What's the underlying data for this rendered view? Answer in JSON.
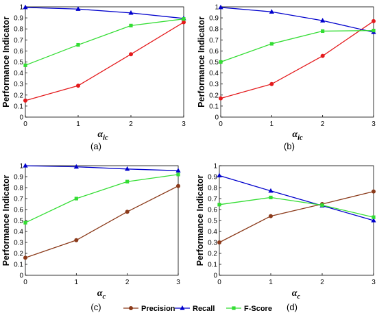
{
  "chart_data": [
    {
      "type": "line",
      "panel": "(a)",
      "x": [
        0,
        1,
        2,
        3
      ],
      "xlabel": {
        "main": "α",
        "sub": "ic"
      },
      "ylabel": "Performance Indicator",
      "ylim": [
        0,
        1
      ],
      "xlim": [
        0,
        3
      ],
      "yticks": [
        "0",
        "0.1",
        "0.2",
        "0.3",
        "0.4",
        "0.5",
        "0.6",
        "0.7",
        "0.8",
        "0.9",
        "1"
      ],
      "xticks": [
        "0",
        "1",
        "2",
        "3"
      ],
      "grid": false,
      "series": [
        {
          "values": [
            0.15,
            0.285,
            0.57,
            0.86
          ],
          "color": "#e41a1c",
          "marker": "circle"
        },
        {
          "values": [
            0.995,
            0.98,
            0.945,
            0.895
          ],
          "color": "#0000cc",
          "marker": "triangle"
        },
        {
          "values": [
            0.47,
            0.655,
            0.83,
            0.89
          ],
          "color": "#33dd33",
          "marker": "square"
        }
      ]
    },
    {
      "type": "line",
      "panel": "(b)",
      "x": [
        0,
        1,
        2,
        3
      ],
      "xlabel": {
        "main": "α",
        "sub": "ic"
      },
      "ylabel": "Performance Indicator",
      "ylim": [
        0,
        1
      ],
      "xlim": [
        0,
        3
      ],
      "yticks": [
        "0",
        "0.1",
        "0.2",
        "0.3",
        "0.4",
        "0.5",
        "0.6",
        "0.7",
        "0.8",
        "0.9",
        "1"
      ],
      "xticks": [
        "0",
        "1",
        "2",
        "3"
      ],
      "grid": false,
      "series": [
        {
          "values": [
            0.17,
            0.3,
            0.555,
            0.87
          ],
          "color": "#e41a1c",
          "marker": "circle"
        },
        {
          "values": [
            0.995,
            0.955,
            0.875,
            0.77
          ],
          "color": "#0000cc",
          "marker": "triangle"
        },
        {
          "values": [
            0.5,
            0.665,
            0.78,
            0.785
          ],
          "color": "#33dd33",
          "marker": "square"
        }
      ]
    },
    {
      "type": "line",
      "panel": "(c)",
      "x": [
        0,
        1,
        2,
        3
      ],
      "xlabel": {
        "main": "α",
        "sub": "c"
      },
      "ylabel": "Performance Indicator",
      "ylim": [
        0,
        1
      ],
      "xlim": [
        0,
        3
      ],
      "yticks": [
        "0",
        "0.1",
        "0.2",
        "0.3",
        "0.4",
        "0.5",
        "0.6",
        "0.7",
        "0.8",
        "0.9",
        "1"
      ],
      "xticks": [
        "0",
        "1",
        "2",
        "3"
      ],
      "grid": false,
      "series": [
        {
          "name": "Precision",
          "values": [
            0.16,
            0.32,
            0.58,
            0.815
          ],
          "color": "#8b3a1a",
          "marker": "circle"
        },
        {
          "name": "Recall",
          "values": [
            1.0,
            0.99,
            0.97,
            0.955
          ],
          "color": "#0000cc",
          "marker": "triangle"
        },
        {
          "name": "F-Score",
          "values": [
            0.48,
            0.7,
            0.855,
            0.92
          ],
          "color": "#33dd33",
          "marker": "square"
        }
      ]
    },
    {
      "type": "line",
      "panel": "(d)",
      "x": [
        0,
        1,
        2,
        3
      ],
      "xlabel": {
        "main": "α",
        "sub": "c"
      },
      "ylabel": "Performance Indicator",
      "ylim": [
        0,
        1
      ],
      "xlim": [
        0,
        3
      ],
      "yticks": [
        "0",
        "0.1",
        "0.2",
        "0.3",
        "0.4",
        "0.5",
        "0.6",
        "0.7",
        "0.8",
        "0.9",
        "1"
      ],
      "xticks": [
        "0",
        "1",
        "2",
        "3"
      ],
      "grid": false,
      "series": [
        {
          "name": "Precision",
          "values": [
            0.3,
            0.54,
            0.65,
            0.765
          ],
          "color": "#8b3a1a",
          "marker": "circle"
        },
        {
          "name": "Recall",
          "values": [
            0.91,
            0.77,
            0.635,
            0.5
          ],
          "color": "#0000cc",
          "marker": "triangle"
        },
        {
          "name": "F-Score",
          "values": [
            0.645,
            0.71,
            0.64,
            0.53
          ],
          "color": "#33dd33",
          "marker": "square"
        }
      ]
    }
  ],
  "legend": {
    "placement": "bottom-center",
    "entries": [
      {
        "label": "Precision",
        "color": "#8b3a1a",
        "marker": "circle"
      },
      {
        "label": "Recall",
        "color": "#0000cc",
        "marker": "triangle"
      },
      {
        "label": "F-Score",
        "color": "#33dd33",
        "marker": "square"
      }
    ]
  }
}
